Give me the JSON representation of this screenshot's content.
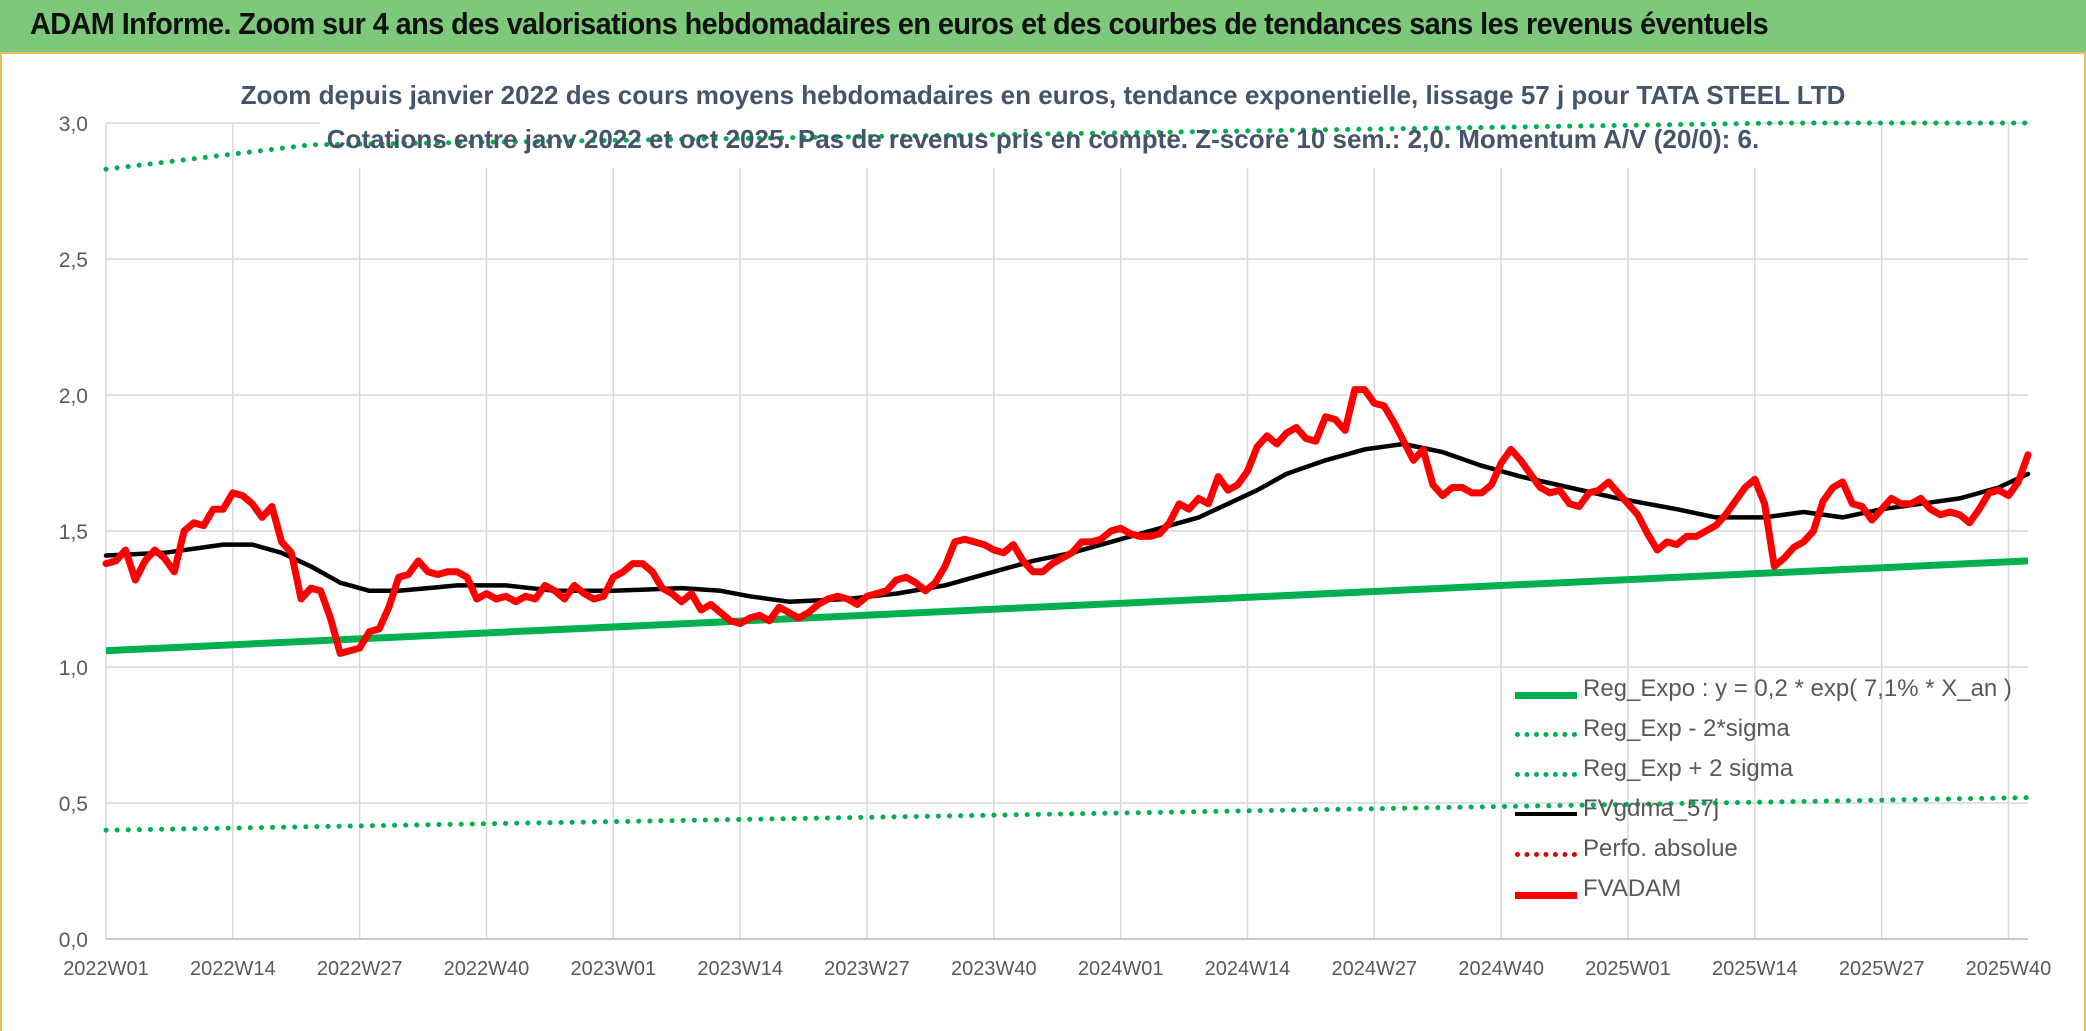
{
  "banner": {
    "title": "ADAM Informe. Zoom sur 4 ans des valorisations hebdomadaires en euros et des courbes de tendances sans les revenus éventuels"
  },
  "chart_data": {
    "type": "line",
    "title": "Zoom depuis janvier 2022 des cours moyens hebdomadaires en euros, tendance exponentielle, lissage 57 j pour TATA STEEL LTD",
    "subtitle": "Cotations entre janv 2022 et oct 2025. Pas de revenus pris en compte. Z-score 10 sem.: 2,0. Momentum A/V (20/0): 6.",
    "xlabel": "",
    "ylabel": "",
    "ylim": [
      0,
      3
    ],
    "y_ticks": [
      "0,0",
      "0,5",
      "1,0",
      "1,5",
      "2,0",
      "2,5",
      "3,0"
    ],
    "x_ticks": [
      "2022W01",
      "2022W14",
      "2022W27",
      "2022W40",
      "2023W01",
      "2023W14",
      "2023W27",
      "2023W40",
      "2024W01",
      "2024W14",
      "2024W27",
      "2024W40",
      "2025W01",
      "2025W14",
      "2025W27",
      "2025W40"
    ],
    "grid": true,
    "legend_position": "bottom-right",
    "weeks_count": 198,
    "series": [
      {
        "name": "Reg_Expo : y = 0,2 * exp( 7,1% *  X_an )",
        "color": "#00b050",
        "style": "solid",
        "points": [
          [
            0,
            1.06
          ],
          [
            197,
            1.39
          ]
        ]
      },
      {
        "name": "Reg_Exp - 2*sigma",
        "color": "#00b050",
        "style": "dotted",
        "points": [
          [
            0,
            0.4
          ],
          [
            197,
            0.52
          ]
        ]
      },
      {
        "name": "Reg_Exp + 2 sigma",
        "color": "#00b050",
        "style": "dotted",
        "points": [
          [
            0,
            2.83
          ],
          [
            21,
            2.92
          ],
          [
            172,
            3.0
          ],
          [
            197,
            3.0
          ]
        ]
      },
      {
        "name": "FVgdma_57j",
        "color": "#000000",
        "style": "solid",
        "points": [
          [
            0,
            1.41
          ],
          [
            6,
            1.42
          ],
          [
            12,
            1.45
          ],
          [
            15,
            1.45
          ],
          [
            18,
            1.42
          ],
          [
            21,
            1.37
          ],
          [
            24,
            1.31
          ],
          [
            27,
            1.28
          ],
          [
            30,
            1.28
          ],
          [
            33,
            1.29
          ],
          [
            36,
            1.3
          ],
          [
            41,
            1.3
          ],
          [
            46,
            1.28
          ],
          [
            52,
            1.28
          ],
          [
            59,
            1.29
          ],
          [
            63,
            1.28
          ],
          [
            66,
            1.26
          ],
          [
            70,
            1.24
          ],
          [
            76,
            1.25
          ],
          [
            81,
            1.27
          ],
          [
            86,
            1.3
          ],
          [
            89,
            1.33
          ],
          [
            92,
            1.36
          ],
          [
            95,
            1.39
          ],
          [
            99,
            1.42
          ],
          [
            103,
            1.46
          ],
          [
            108,
            1.51
          ],
          [
            112,
            1.55
          ],
          [
            115,
            1.6
          ],
          [
            118,
            1.65
          ],
          [
            121,
            1.71
          ],
          [
            125,
            1.76
          ],
          [
            129,
            1.8
          ],
          [
            133,
            1.82
          ],
          [
            137,
            1.79
          ],
          [
            141,
            1.74
          ],
          [
            145,
            1.7
          ],
          [
            150,
            1.66
          ],
          [
            155,
            1.62
          ],
          [
            161,
            1.58
          ],
          [
            165,
            1.55
          ],
          [
            170,
            1.55
          ],
          [
            174,
            1.57
          ],
          [
            178,
            1.55
          ],
          [
            182,
            1.58
          ],
          [
            186,
            1.6
          ],
          [
            190,
            1.62
          ],
          [
            194,
            1.66
          ],
          [
            197,
            1.71
          ]
        ]
      },
      {
        "name": "Perfo. absolue",
        "color": "#e00000",
        "style": "dotted",
        "points": []
      },
      {
        "name": "FVADAM",
        "color": "#ff0000",
        "style": "solid",
        "points": [
          [
            0,
            1.38
          ],
          [
            1,
            1.39
          ],
          [
            2,
            1.43
          ],
          [
            3,
            1.32
          ],
          [
            4,
            1.39
          ],
          [
            5,
            1.43
          ],
          [
            6,
            1.4
          ],
          [
            7,
            1.35
          ],
          [
            8,
            1.5
          ],
          [
            9,
            1.53
          ],
          [
            10,
            1.52
          ],
          [
            11,
            1.58
          ],
          [
            12,
            1.58
          ],
          [
            13,
            1.64
          ],
          [
            14,
            1.63
          ],
          [
            15,
            1.6
          ],
          [
            16,
            1.55
          ],
          [
            17,
            1.59
          ],
          [
            18,
            1.46
          ],
          [
            19,
            1.42
          ],
          [
            20,
            1.25
          ],
          [
            21,
            1.29
          ],
          [
            22,
            1.28
          ],
          [
            23,
            1.18
          ],
          [
            24,
            1.05
          ],
          [
            25,
            1.06
          ],
          [
            26,
            1.07
          ],
          [
            27,
            1.13
          ],
          [
            28,
            1.14
          ],
          [
            29,
            1.22
          ],
          [
            30,
            1.33
          ],
          [
            31,
            1.34
          ],
          [
            32,
            1.39
          ],
          [
            33,
            1.35
          ],
          [
            34,
            1.34
          ],
          [
            35,
            1.35
          ],
          [
            36,
            1.35
          ],
          [
            37,
            1.33
          ],
          [
            38,
            1.25
          ],
          [
            39,
            1.27
          ],
          [
            40,
            1.25
          ],
          [
            41,
            1.26
          ],
          [
            42,
            1.24
          ],
          [
            43,
            1.26
          ],
          [
            44,
            1.25
          ],
          [
            45,
            1.3
          ],
          [
            46,
            1.28
          ],
          [
            47,
            1.25
          ],
          [
            48,
            1.3
          ],
          [
            49,
            1.27
          ],
          [
            50,
            1.25
          ],
          [
            51,
            1.26
          ],
          [
            52,
            1.33
          ],
          [
            53,
            1.35
          ],
          [
            54,
            1.38
          ],
          [
            55,
            1.38
          ],
          [
            56,
            1.35
          ],
          [
            57,
            1.29
          ],
          [
            58,
            1.27
          ],
          [
            59,
            1.24
          ],
          [
            60,
            1.27
          ],
          [
            61,
            1.21
          ],
          [
            62,
            1.23
          ],
          [
            63,
            1.2
          ],
          [
            64,
            1.17
          ],
          [
            65,
            1.16
          ],
          [
            66,
            1.18
          ],
          [
            67,
            1.19
          ],
          [
            68,
            1.17
          ],
          [
            69,
            1.22
          ],
          [
            70,
            1.2
          ],
          [
            71,
            1.18
          ],
          [
            72,
            1.2
          ],
          [
            73,
            1.23
          ],
          [
            74,
            1.25
          ],
          [
            75,
            1.26
          ],
          [
            76,
            1.25
          ],
          [
            77,
            1.23
          ],
          [
            78,
            1.26
          ],
          [
            79,
            1.27
          ],
          [
            80,
            1.28
          ],
          [
            81,
            1.32
          ],
          [
            82,
            1.33
          ],
          [
            83,
            1.31
          ],
          [
            84,
            1.28
          ],
          [
            85,
            1.31
          ],
          [
            86,
            1.37
          ],
          [
            87,
            1.46
          ],
          [
            88,
            1.47
          ],
          [
            89,
            1.46
          ],
          [
            90,
            1.45
          ],
          [
            91,
            1.43
          ],
          [
            92,
            1.42
          ],
          [
            93,
            1.45
          ],
          [
            94,
            1.39
          ],
          [
            95,
            1.35
          ],
          [
            96,
            1.35
          ],
          [
            97,
            1.38
          ],
          [
            98,
            1.4
          ],
          [
            99,
            1.42
          ],
          [
            100,
            1.46
          ],
          [
            101,
            1.46
          ],
          [
            102,
            1.47
          ],
          [
            103,
            1.5
          ],
          [
            104,
            1.51
          ],
          [
            105,
            1.49
          ],
          [
            106,
            1.48
          ],
          [
            107,
            1.48
          ],
          [
            108,
            1.49
          ],
          [
            109,
            1.53
          ],
          [
            110,
            1.6
          ],
          [
            111,
            1.58
          ],
          [
            112,
            1.62
          ],
          [
            113,
            1.6
          ],
          [
            114,
            1.7
          ],
          [
            115,
            1.65
          ],
          [
            116,
            1.67
          ],
          [
            117,
            1.72
          ],
          [
            118,
            1.81
          ],
          [
            119,
            1.85
          ],
          [
            120,
            1.82
          ],
          [
            121,
            1.86
          ],
          [
            122,
            1.88
          ],
          [
            123,
            1.84
          ],
          [
            124,
            1.83
          ],
          [
            125,
            1.92
          ],
          [
            126,
            1.91
          ],
          [
            127,
            1.87
          ],
          [
            128,
            2.02
          ],
          [
            129,
            2.02
          ],
          [
            130,
            1.97
          ],
          [
            131,
            1.96
          ],
          [
            132,
            1.9
          ],
          [
            133,
            1.83
          ],
          [
            134,
            1.76
          ],
          [
            135,
            1.8
          ],
          [
            136,
            1.67
          ],
          [
            137,
            1.63
          ],
          [
            138,
            1.66
          ],
          [
            139,
            1.66
          ],
          [
            140,
            1.64
          ],
          [
            141,
            1.64
          ],
          [
            142,
            1.67
          ],
          [
            143,
            1.75
          ],
          [
            144,
            1.8
          ],
          [
            145,
            1.76
          ],
          [
            146,
            1.71
          ],
          [
            147,
            1.66
          ],
          [
            148,
            1.64
          ],
          [
            149,
            1.65
          ],
          [
            150,
            1.6
          ],
          [
            151,
            1.59
          ],
          [
            152,
            1.64
          ],
          [
            153,
            1.65
          ],
          [
            154,
            1.68
          ],
          [
            155,
            1.64
          ],
          [
            156,
            1.6
          ],
          [
            157,
            1.56
          ],
          [
            158,
            1.49
          ],
          [
            159,
            1.43
          ],
          [
            160,
            1.46
          ],
          [
            161,
            1.45
          ],
          [
            162,
            1.48
          ],
          [
            163,
            1.48
          ],
          [
            164,
            1.5
          ],
          [
            165,
            1.52
          ],
          [
            166,
            1.56
          ],
          [
            167,
            1.61
          ],
          [
            168,
            1.66
          ],
          [
            169,
            1.69
          ],
          [
            170,
            1.6
          ],
          [
            171,
            1.37
          ],
          [
            172,
            1.4
          ],
          [
            173,
            1.44
          ],
          [
            174,
            1.46
          ],
          [
            175,
            1.5
          ],
          [
            176,
            1.61
          ],
          [
            177,
            1.66
          ],
          [
            178,
            1.68
          ],
          [
            179,
            1.6
          ],
          [
            180,
            1.59
          ],
          [
            181,
            1.54
          ],
          [
            182,
            1.58
          ],
          [
            183,
            1.62
          ],
          [
            184,
            1.6
          ],
          [
            185,
            1.6
          ],
          [
            186,
            1.62
          ],
          [
            187,
            1.58
          ],
          [
            188,
            1.56
          ],
          [
            189,
            1.57
          ],
          [
            190,
            1.56
          ],
          [
            191,
            1.53
          ],
          [
            192,
            1.58
          ],
          [
            193,
            1.64
          ],
          [
            194,
            1.65
          ],
          [
            195,
            1.63
          ],
          [
            196,
            1.68
          ],
          [
            197,
            1.78
          ]
        ]
      }
    ]
  }
}
